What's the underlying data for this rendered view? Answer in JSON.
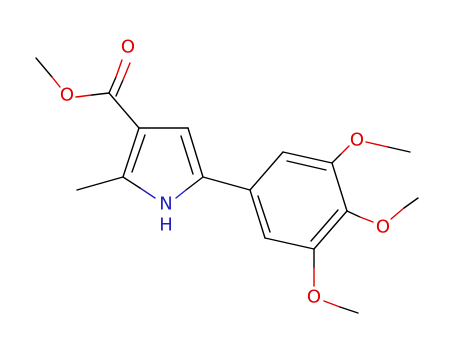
{
  "molecule": {
    "atoms": [
      {
        "label": "O"
      },
      {
        "label": "O"
      },
      {
        "label": "N"
      },
      {
        "label": "H"
      },
      {
        "label": "O"
      },
      {
        "label": "O"
      },
      {
        "label": "O"
      }
    ]
  }
}
